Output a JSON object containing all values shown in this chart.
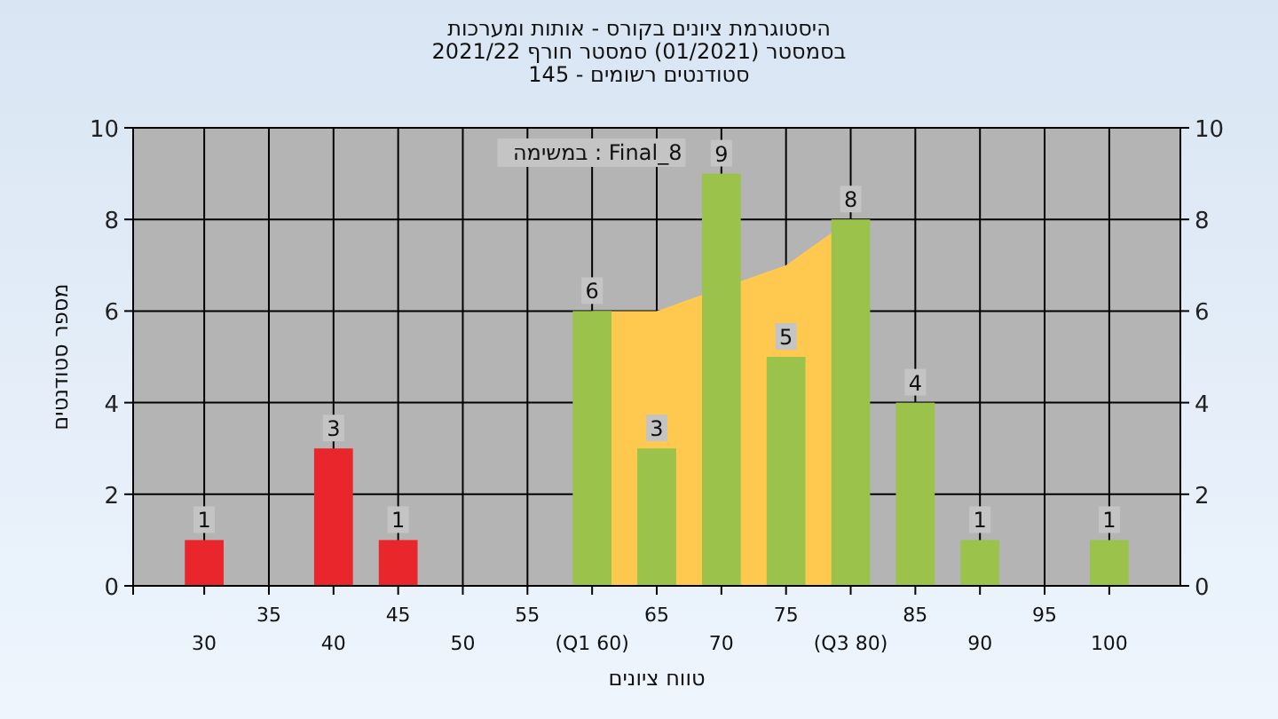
{
  "chart_data": {
    "type": "bar",
    "title": "היסטוגרמת ציונים בקורס - אותות ומערכות",
    "subtitle": "בסמסטר (01/2021) סמסטר חורף 2021/22\nסטודנטים רשומים - 145",
    "xlabel": "טווח ציונים",
    "ylabel": "מספר סטודנטים",
    "annotations": [
      "במשימה : Final_8"
    ],
    "categories": [
      "30",
      "35",
      "40",
      "45",
      "50",
      "55",
      "(Q1 60)",
      "65",
      "70",
      "75",
      "(Q3 80)",
      "85",
      "90",
      "95",
      "100"
    ],
    "series": [
      {
        "type": "area",
        "color": "#ffc94f",
        "values": [
          null,
          null,
          null,
          null,
          null,
          null,
          6,
          6,
          null,
          7,
          8,
          null,
          null,
          null,
          null
        ]
      },
      {
        "colors": [
          "#e8262b",
          "#e8262b",
          "#e8262b",
          "#e8262b",
          "#e8262b",
          "#e8262b",
          "#9bc24a",
          "#9bc24a",
          "#9bc24a",
          "#9bc24a",
          "#9bc24a",
          "#9bc24a",
          "#9bc24a",
          "#9bc24a",
          "#9bc24a"
        ],
        "values": [
          1,
          0,
          3,
          1,
          0,
          0,
          6,
          3,
          9,
          5,
          8,
          4,
          1,
          0,
          1
        ],
        "value_labels": [
          "1",
          null,
          "3",
          "1",
          null,
          null,
          "6",
          "3",
          "9",
          "5",
          "8",
          "4",
          "1",
          null,
          "1"
        ]
      }
    ],
    "ylim": [
      0,
      10
    ],
    "yticks": [
      0,
      2,
      4,
      6,
      8,
      10
    ],
    "y2lim": [
      0,
      10
    ],
    "y2ticks": [
      0,
      2,
      4,
      6,
      8,
      10
    ],
    "grid": true
  }
}
